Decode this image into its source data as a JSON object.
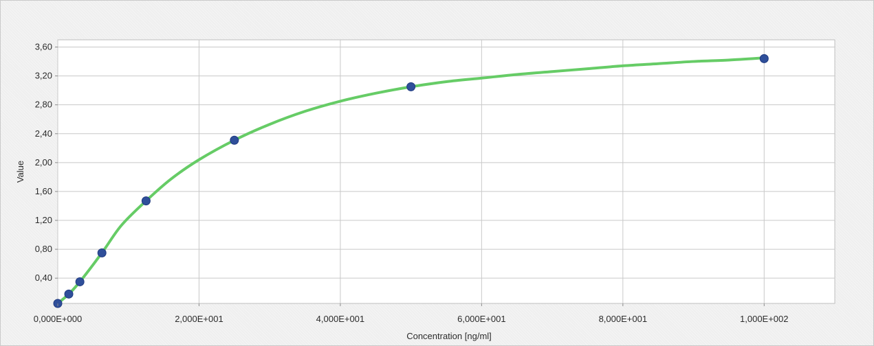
{
  "chart_data": {
    "type": "scatter",
    "title": "",
    "xlabel": "Concentration [ng/ml]",
    "ylabel": "Value",
    "xlim": [
      0,
      110
    ],
    "ylim": [
      0.05,
      3.7
    ],
    "x_ticks": [
      0,
      20,
      40,
      60,
      80,
      100
    ],
    "x_tick_labels": [
      "0,000E+000",
      "2,000E+001",
      "4,000E+001",
      "6,000E+001",
      "8,000E+001",
      "1,000E+002"
    ],
    "y_ticks": [
      0.4,
      0.8,
      1.2,
      1.6,
      2.0,
      2.4,
      2.8,
      3.2,
      3.6
    ],
    "y_tick_labels": [
      "0,40",
      "0,80",
      "1,20",
      "1,60",
      "2,00",
      "2,40",
      "2,80",
      "3,20",
      "3,60"
    ],
    "grid": true,
    "series": [
      {
        "type": "scatter",
        "color": "#2f4f9a",
        "x": [
          0,
          1.56,
          3.13,
          6.25,
          12.5,
          25,
          50,
          100
        ],
        "y": [
          0.05,
          0.18,
          0.35,
          0.75,
          1.47,
          2.31,
          3.05,
          3.44
        ]
      },
      {
        "type": "line",
        "color": "#66cc66",
        "x": [
          0,
          1.56,
          3.13,
          6.25,
          9,
          12.5,
          16,
          20,
          25,
          30,
          35,
          40,
          45,
          50,
          55,
          60,
          65,
          70,
          75,
          80,
          85,
          90,
          95,
          100
        ],
        "y": [
          0.05,
          0.18,
          0.35,
          0.75,
          1.13,
          1.47,
          1.77,
          2.04,
          2.31,
          2.53,
          2.71,
          2.85,
          2.96,
          3.05,
          3.12,
          3.17,
          3.22,
          3.26,
          3.3,
          3.34,
          3.37,
          3.4,
          3.42,
          3.45
        ]
      }
    ]
  }
}
